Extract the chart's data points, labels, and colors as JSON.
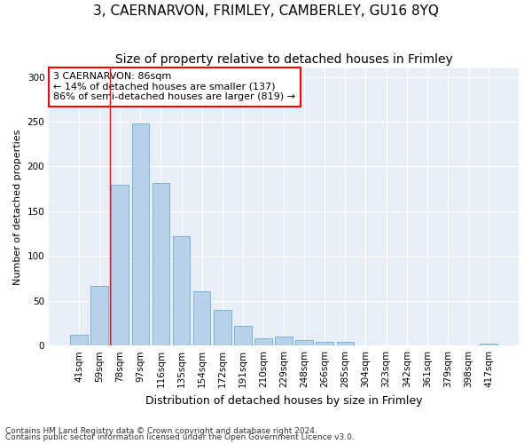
{
  "title": "3, CAERNARVON, FRIMLEY, CAMBERLEY, GU16 8YQ",
  "subtitle": "Size of property relative to detached houses in Frimley",
  "xlabel": "Distribution of detached houses by size in Frimley",
  "ylabel": "Number of detached properties",
  "footnote1": "Contains HM Land Registry data © Crown copyright and database right 2024.",
  "footnote2": "Contains public sector information licensed under the Open Government Licence v3.0.",
  "categories": [
    "41sqm",
    "59sqm",
    "78sqm",
    "97sqm",
    "116sqm",
    "135sqm",
    "154sqm",
    "172sqm",
    "191sqm",
    "210sqm",
    "229sqm",
    "248sqm",
    "266sqm",
    "285sqm",
    "304sqm",
    "323sqm",
    "342sqm",
    "361sqm",
    "379sqm",
    "398sqm",
    "417sqm"
  ],
  "values": [
    12,
    67,
    180,
    248,
    182,
    122,
    61,
    40,
    22,
    8,
    10,
    6,
    4,
    4,
    0,
    0,
    0,
    0,
    0,
    0,
    2
  ],
  "bar_color": "#b8d0e8",
  "bar_edge_color": "#6aaed6",
  "annotation_box_text": "3 CAERNARVON: 86sqm\n← 14% of detached houses are smaller (137)\n86% of semi-detached houses are larger (819) →",
  "annotation_box_color": "white",
  "annotation_box_edge_color": "red",
  "vline_color": "red",
  "vline_x_index": 2,
  "ylim": [
    0,
    310
  ],
  "yticks": [
    0,
    50,
    100,
    150,
    200,
    250,
    300
  ],
  "bg_color": "#e8eef8",
  "title_fontsize": 11,
  "subtitle_fontsize": 10,
  "xlabel_fontsize": 9,
  "ylabel_fontsize": 8,
  "tick_fontsize": 7.5,
  "annot_fontsize": 8,
  "footnote_fontsize": 6.5
}
